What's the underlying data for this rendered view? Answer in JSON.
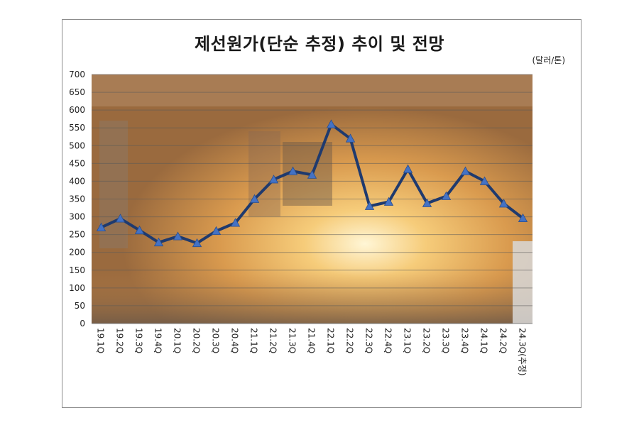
{
  "chart_data": {
    "type": "line",
    "title": "제선원가(단순 추정) 추이 및 전망",
    "unit": "(달러/톤)",
    "xlabel": "",
    "ylabel": "",
    "ylim": [
      0,
      700
    ],
    "ytick_step": 50,
    "grid": true,
    "categories": [
      "19.1Q",
      "19.2Q",
      "19.3Q",
      "19.4Q",
      "20.1Q",
      "20.2Q",
      "20.3Q",
      "20.4Q",
      "21.1Q",
      "21.2Q",
      "21.3Q",
      "21.4Q",
      "22.1Q",
      "22.2Q",
      "22.3Q",
      "22.4Q",
      "23.1Q",
      "23.2Q",
      "23.3Q",
      "23.4Q",
      "24.1Q",
      "24.2Q",
      "24.3Q(추정)"
    ],
    "series": [
      {
        "values": [
          270,
          295,
          262,
          228,
          245,
          226,
          260,
          283,
          350,
          405,
          428,
          418,
          560,
          520,
          330,
          342,
          434,
          338,
          358,
          428,
          400,
          337,
          296
        ],
        "color": "#1f3a6e",
        "marker_color": "#4472c4"
      }
    ]
  }
}
